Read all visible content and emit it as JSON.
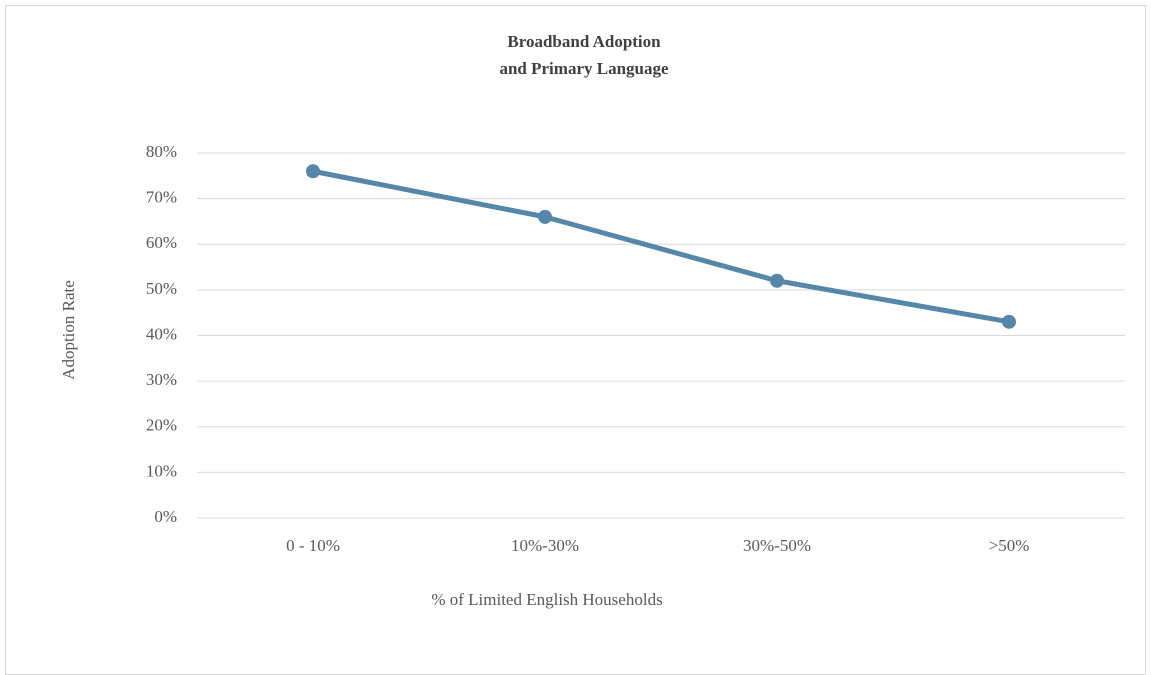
{
  "chart_data": {
    "type": "line",
    "title": [
      "Broadband Adoption",
      "and Primary Language"
    ],
    "x_label": "% of Limited English Households",
    "y_label": "Adoption Rate",
    "categories": [
      "0 - 10%",
      "10%-30%",
      "30%-50%",
      ">50%"
    ],
    "series": [
      {
        "name": "Adoption Rate",
        "color": "#5686a8",
        "values": [
          76,
          66,
          52,
          43
        ]
      }
    ],
    "ylim": [
      0,
      80
    ],
    "yticks": [
      {
        "value": 0,
        "label": "0%"
      },
      {
        "value": 10,
        "label": "10%"
      },
      {
        "value": 20,
        "label": "20%"
      },
      {
        "value": 30,
        "label": "30%"
      },
      {
        "value": 40,
        "label": "40%"
      },
      {
        "value": 50,
        "label": "50%"
      },
      {
        "value": 60,
        "label": "60%"
      },
      {
        "value": 70,
        "label": "70%"
      },
      {
        "value": 80,
        "label": "80%"
      }
    ],
    "grid": true
  }
}
